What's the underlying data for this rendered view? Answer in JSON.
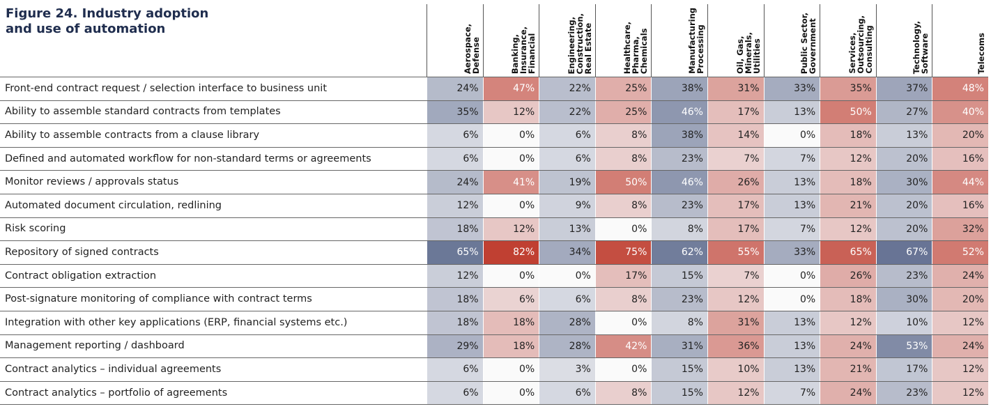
{
  "title": "Figure 24. Industry adoption and use of automation",
  "table": {
    "columns": [
      [
        "Aerospace,",
        "Defense"
      ],
      [
        "Banking,",
        "Insurance,",
        "Financial"
      ],
      [
        "Engineering,",
        "Construction,",
        "Real Estate"
      ],
      [
        "Healthcare,",
        "Pharma,",
        "Chemicals"
      ],
      [
        "Manufacturing",
        "Processing"
      ],
      [
        "Oil, Gas,",
        "Minerals,",
        "Utilities"
      ],
      [
        "Public Sector,",
        "Government"
      ],
      [
        "Services,",
        "Outsourcing,",
        "Consulting"
      ],
      [
        "Technology,",
        "Software"
      ],
      [
        "Telecoms"
      ]
    ],
    "rows": [
      {
        "label": "Front-end contract request / selection interface to business unit",
        "values": [
          "24%",
          "47%",
          "22%",
          "25%",
          "38%",
          "31%",
          "33%",
          "35%",
          "37%",
          "48%"
        ]
      },
      {
        "label": "Ability to assemble standard contracts from templates",
        "values": [
          "35%",
          "12%",
          "22%",
          "25%",
          "46%",
          "17%",
          "13%",
          "50%",
          "27%",
          "40%"
        ]
      },
      {
        "label": "Ability to assemble contracts from a clause library",
        "values": [
          "6%",
          "0%",
          "6%",
          "8%",
          "38%",
          "14%",
          "0%",
          "18%",
          "13%",
          "20%"
        ]
      },
      {
        "label": "Defined and automated workflow for non-standard terms or agreements",
        "values": [
          "6%",
          "0%",
          "6%",
          "8%",
          "23%",
          "7%",
          "7%",
          "12%",
          "20%",
          "16%"
        ]
      },
      {
        "label": "Monitor reviews / approvals status",
        "values": [
          "24%",
          "41%",
          "19%",
          "50%",
          "46%",
          "26%",
          "13%",
          "18%",
          "30%",
          "44%"
        ]
      },
      {
        "label": "Automated document circulation, redlining",
        "values": [
          "12%",
          "0%",
          "9%",
          "8%",
          "23%",
          "17%",
          "13%",
          "21%",
          "20%",
          "16%"
        ]
      },
      {
        "label": "Risk scoring",
        "values": [
          "18%",
          "12%",
          "13%",
          "0%",
          "8%",
          "17%",
          "7%",
          "12%",
          "20%",
          "32%"
        ]
      },
      {
        "label": "Repository of signed contracts",
        "values": [
          "65%",
          "82%",
          "34%",
          "75%",
          "62%",
          "55%",
          "33%",
          "65%",
          "67%",
          "52%"
        ]
      },
      {
        "label": "Contract obligation extraction",
        "values": [
          "12%",
          "0%",
          "0%",
          "17%",
          "15%",
          "7%",
          "0%",
          "26%",
          "23%",
          "24%"
        ]
      },
      {
        "label": "Post-signature monitoring of compliance with contract terms",
        "values": [
          "18%",
          "6%",
          "6%",
          "8%",
          "23%",
          "12%",
          "0%",
          "18%",
          "30%",
          "20%"
        ]
      },
      {
        "label": "Integration with other key applications (ERP, financial systems etc.)",
        "values": [
          "18%",
          "18%",
          "28%",
          "0%",
          "8%",
          "31%",
          "13%",
          "12%",
          "10%",
          "12%"
        ]
      },
      {
        "label": "Management reporting / dashboard",
        "values": [
          "29%",
          "18%",
          "28%",
          "42%",
          "31%",
          "36%",
          "13%",
          "24%",
          "53%",
          "24%"
        ]
      },
      {
        "label": "Contract analytics – individual agreements",
        "values": [
          "6%",
          "0%",
          "3%",
          "0%",
          "15%",
          "10%",
          "13%",
          "21%",
          "17%",
          "12%"
        ]
      },
      {
        "label": "Contract analytics – portfolio of agreements",
        "values": [
          "6%",
          "0%",
          "6%",
          "8%",
          "15%",
          "12%",
          "7%",
          "24%",
          "23%",
          "12%"
        ]
      }
    ]
  }
}
